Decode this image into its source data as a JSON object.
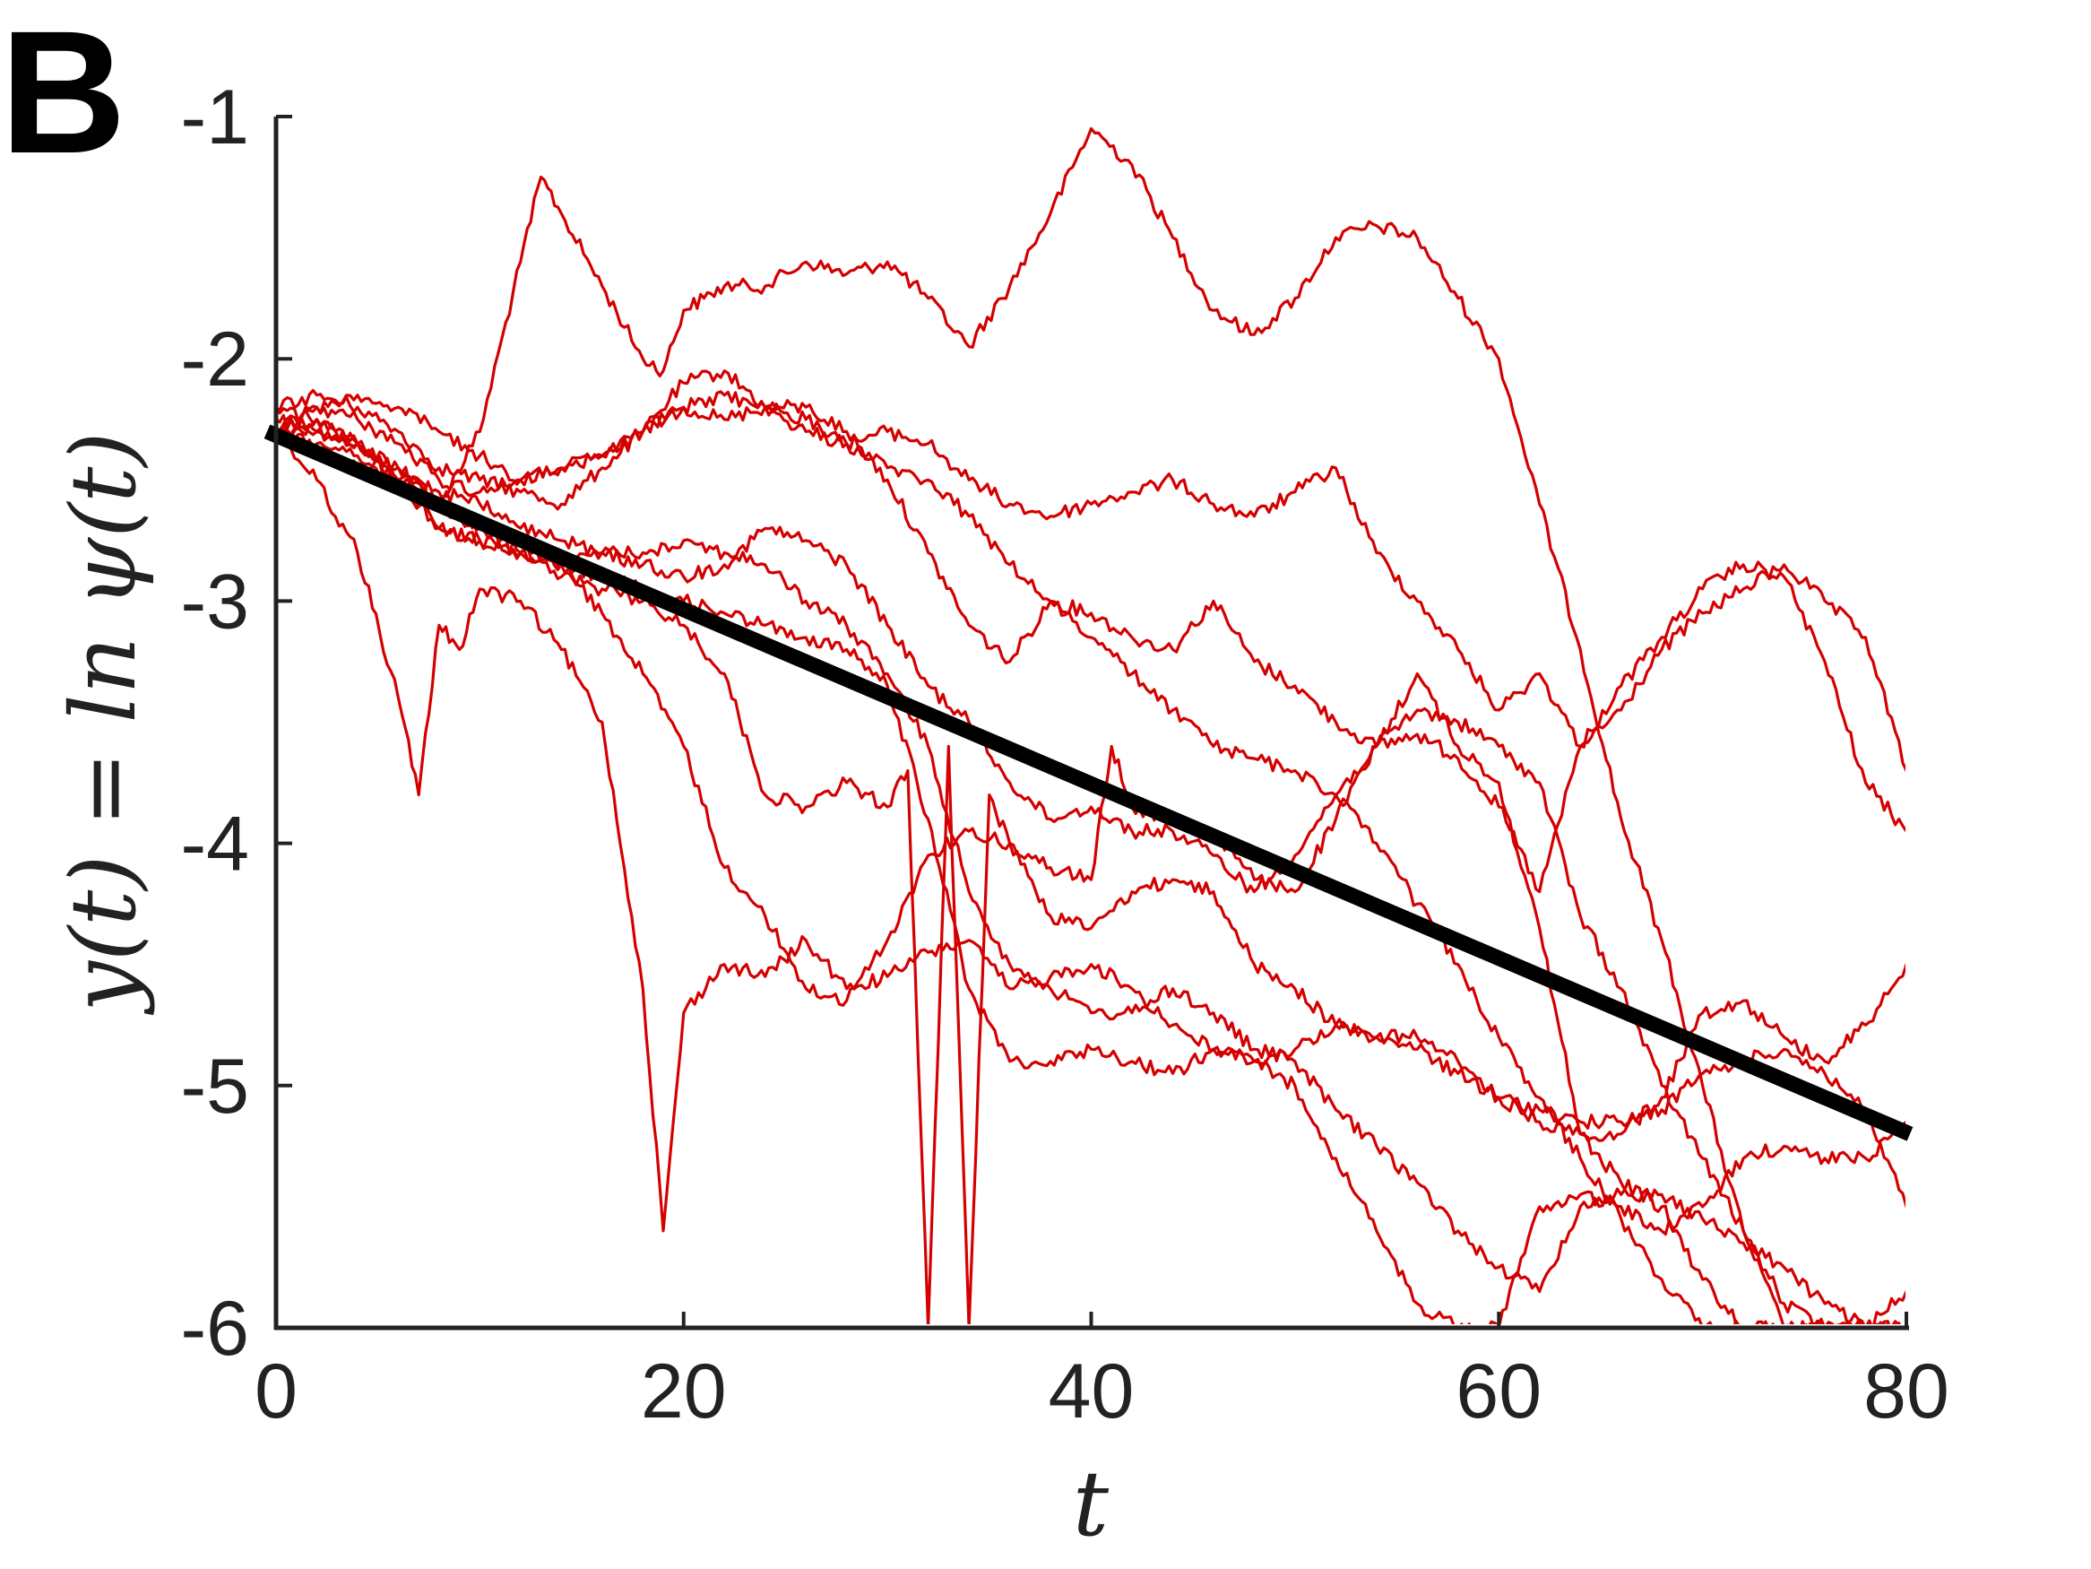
{
  "panel_label": "B",
  "colors": {
    "trajectories": "#d40000",
    "mean_line": "#000000",
    "axes": "#222222"
  },
  "chart_data": {
    "type": "line",
    "title": "",
    "xlabel": "t",
    "ylabel": "y(t) = ln ψ(t)",
    "xlim": [
      0,
      80
    ],
    "ylim": [
      -6,
      -1
    ],
    "xticks": [
      0,
      20,
      40,
      60,
      80
    ],
    "yticks": [
      -1,
      -2,
      -3,
      -4,
      -5,
      -6
    ],
    "xtick_labels": [
      "0",
      "20",
      "40",
      "60",
      "80"
    ],
    "ytick_labels": [
      "-1",
      "-2",
      "-3",
      "-4",
      "-5",
      "-6"
    ],
    "grid": false,
    "legend": "none",
    "reference_line": {
      "x": [
        0,
        80
      ],
      "y": [
        -2.3,
        -5.2
      ]
    },
    "series": [
      {
        "x": [
          0,
          2,
          4,
          6,
          8,
          10,
          12,
          13,
          14,
          16,
          18,
          19,
          20,
          21,
          22,
          24,
          26,
          28,
          30,
          32,
          34,
          36,
          38,
          40,
          42,
          44,
          46,
          48,
          50,
          52,
          54,
          56,
          58,
          60,
          62,
          64,
          66,
          68,
          70,
          72,
          74,
          76,
          78,
          80
        ],
        "y": [
          -2.3,
          -2.25,
          -2.35,
          -2.5,
          -2.6,
          -2.3,
          -1.6,
          -1.25,
          -1.4,
          -1.7,
          -2.0,
          -2.05,
          -1.8,
          -1.75,
          -1.7,
          -1.7,
          -1.6,
          -1.65,
          -1.6,
          -1.75,
          -1.95,
          -1.7,
          -1.4,
          -1.05,
          -1.2,
          -1.5,
          -1.8,
          -1.9,
          -1.75,
          -1.5,
          -1.45,
          -1.5,
          -1.75,
          -2.0,
          -2.6,
          -3.2,
          -3.9,
          -4.4,
          -5.0,
          -5.6,
          -6.0,
          -6.0,
          -6.0,
          -6.0
        ]
      },
      {
        "x": [
          0,
          2,
          4,
          6,
          8,
          10,
          12,
          14,
          16,
          18,
          20,
          22,
          24,
          26,
          28,
          30,
          32,
          34,
          36,
          38,
          40,
          42,
          44,
          46,
          48,
          50,
          52,
          54,
          56,
          58,
          60,
          62,
          64,
          66,
          68,
          70,
          72,
          74,
          76,
          78,
          80
        ],
        "y": [
          -2.2,
          -2.15,
          -2.2,
          -2.3,
          -2.45,
          -2.5,
          -2.55,
          -2.6,
          -2.45,
          -2.3,
          -2.1,
          -2.05,
          -2.2,
          -2.2,
          -2.3,
          -2.5,
          -2.8,
          -3.1,
          -3.25,
          -3.0,
          -3.05,
          -3.15,
          -3.2,
          -3.0,
          -3.25,
          -3.35,
          -3.5,
          -3.6,
          -3.55,
          -3.65,
          -3.85,
          -4.2,
          -3.6,
          -3.45,
          -3.2,
          -3.05,
          -2.95,
          -2.85,
          -3.0,
          -3.15,
          -3.7
        ]
      },
      {
        "x": [
          0,
          2,
          4,
          6,
          8,
          10,
          12,
          14,
          16,
          18,
          20,
          22,
          24,
          26,
          28,
          30,
          32,
          34,
          36,
          38,
          40,
          42,
          44,
          46,
          48,
          50,
          52,
          54,
          56,
          58,
          60,
          62,
          64,
          66,
          68,
          70,
          72,
          74,
          76,
          78,
          80
        ],
        "y": [
          -2.3,
          -2.2,
          -2.25,
          -2.35,
          -2.5,
          -2.55,
          -2.5,
          -2.45,
          -2.4,
          -2.3,
          -2.2,
          -2.25,
          -2.2,
          -2.3,
          -2.35,
          -2.3,
          -2.35,
          -2.5,
          -2.6,
          -2.65,
          -2.6,
          -2.55,
          -2.5,
          -2.6,
          -2.65,
          -2.55,
          -2.45,
          -2.8,
          -3.0,
          -3.2,
          -3.45,
          -3.3,
          -3.6,
          -3.35,
          -3.15,
          -2.95,
          -2.85,
          -2.9,
          -3.25,
          -3.75,
          -3.95
        ]
      },
      {
        "x": [
          0,
          2,
          4,
          6,
          8,
          10,
          12,
          14,
          16,
          18,
          20,
          22,
          24,
          26,
          28,
          30,
          32,
          34,
          36,
          38,
          40,
          42,
          44,
          46,
          48,
          50,
          52,
          54,
          56,
          58,
          60,
          62,
          64,
          66,
          68,
          70,
          72,
          74,
          76,
          78,
          80
        ],
        "y": [
          -2.25,
          -2.3,
          -2.35,
          -2.45,
          -2.6,
          -2.7,
          -2.8,
          -2.85,
          -2.8,
          -2.85,
          -2.9,
          -2.85,
          -2.7,
          -2.75,
          -2.85,
          -3.1,
          -3.35,
          -3.5,
          -3.75,
          -3.9,
          -3.85,
          -3.95,
          -3.95,
          -4.05,
          -4.2,
          -4.05,
          -3.8,
          -3.6,
          -3.45,
          -3.5,
          -3.6,
          -3.75,
          -4.3,
          -4.6,
          -5.0,
          -5.3,
          -5.6,
          -5.9,
          -6.0,
          -6.0,
          -6.0
        ]
      },
      {
        "x": [
          0,
          2,
          4,
          6,
          7,
          8,
          9,
          10,
          12,
          14,
          16,
          18,
          19,
          20,
          22,
          24,
          26,
          28,
          30,
          32,
          34,
          36,
          38,
          40,
          42,
          44,
          46,
          48,
          50,
          52,
          54,
          56,
          58,
          60,
          62,
          64,
          66,
          68,
          70,
          72,
          74,
          76,
          78,
          80
        ],
        "y": [
          -2.3,
          -2.5,
          -2.8,
          -3.4,
          -3.8,
          -3.1,
          -3.2,
          -2.95,
          -3.0,
          -3.2,
          -3.5,
          -4.6,
          -5.6,
          -4.7,
          -4.5,
          -4.55,
          -4.4,
          -4.6,
          -4.55,
          -4.45,
          -4.4,
          -4.6,
          -4.55,
          -4.5,
          -4.6,
          -4.75,
          -4.85,
          -4.9,
          -4.85,
          -4.75,
          -4.8,
          -4.8,
          -4.9,
          -5.05,
          -5.1,
          -5.15,
          -5.15,
          -5.1,
          -4.95,
          -4.9,
          -4.85,
          -4.95,
          -5.1,
          -5.5
        ]
      },
      {
        "x": [
          0,
          2,
          4,
          6,
          8,
          10,
          12,
          14,
          16,
          18,
          20,
          22,
          24,
          26,
          28,
          30,
          31,
          32,
          33,
          34,
          35,
          36,
          38,
          40,
          41,
          42,
          44,
          46,
          48,
          50,
          52,
          54,
          56,
          58,
          60,
          62,
          64,
          66,
          68,
          70,
          72,
          74,
          76,
          78,
          80
        ],
        "y": [
          -2.3,
          -2.4,
          -2.45,
          -2.5,
          -2.7,
          -2.75,
          -2.8,
          -2.9,
          -2.95,
          -3.0,
          -3.1,
          -3.3,
          -3.8,
          -3.85,
          -3.75,
          -3.85,
          -3.7,
          -6.0,
          -3.6,
          -6.0,
          -3.8,
          -4.0,
          -4.1,
          -4.15,
          -3.6,
          -3.85,
          -3.9,
          -3.95,
          -4.15,
          -4.2,
          -3.9,
          -3.6,
          -3.3,
          -3.6,
          -3.75,
          -4.35,
          -5.2,
          -5.4,
          -5.5,
          -5.8,
          -6.0,
          -6.0,
          -6.0,
          -6.0,
          -5.85
        ]
      },
      {
        "x": [
          0,
          2,
          4,
          6,
          8,
          10,
          12,
          14,
          16,
          18,
          20,
          22,
          24,
          26,
          28,
          30,
          32,
          34,
          36,
          38,
          40,
          42,
          44,
          46,
          48,
          50,
          52,
          54,
          56,
          58,
          60,
          62,
          64,
          66,
          68,
          70,
          72,
          74,
          76,
          78,
          80
        ],
        "y": [
          -2.2,
          -2.25,
          -2.35,
          -2.45,
          -2.6,
          -2.7,
          -2.75,
          -2.85,
          -3.05,
          -3.3,
          -3.6,
          -4.1,
          -4.3,
          -4.6,
          -4.65,
          -4.4,
          -4.05,
          -3.95,
          -4.0,
          -4.3,
          -4.35,
          -4.2,
          -4.15,
          -4.2,
          -4.5,
          -4.6,
          -4.75,
          -4.8,
          -4.85,
          -4.95,
          -5.05,
          -5.15,
          -5.2,
          -5.2,
          -5.05,
          -4.7,
          -4.65,
          -4.8,
          -4.9,
          -4.75,
          -4.5
        ]
      },
      {
        "x": [
          0,
          2,
          4,
          6,
          8,
          10,
          12,
          14,
          16,
          18,
          20,
          22,
          24,
          26,
          28,
          30,
          32,
          34,
          36,
          38,
          40,
          42,
          44,
          46,
          48,
          50,
          52,
          54,
          56,
          58,
          60,
          62,
          64,
          66,
          68,
          70,
          72,
          74,
          76,
          78,
          80
        ],
        "y": [
          -2.3,
          -2.35,
          -2.4,
          -2.5,
          -2.55,
          -2.6,
          -2.7,
          -2.75,
          -2.8,
          -2.8,
          -2.75,
          -2.8,
          -2.85,
          -3.0,
          -3.1,
          -3.3,
          -3.6,
          -4.2,
          -4.5,
          -4.6,
          -4.7,
          -4.7,
          -4.6,
          -4.7,
          -4.85,
          -4.9,
          -5.1,
          -5.25,
          -5.4,
          -5.6,
          -5.75,
          -5.85,
          -5.5,
          -5.45,
          -5.45,
          -5.55,
          -5.65,
          -5.75,
          -5.9,
          -6.0,
          -6.0
        ]
      },
      {
        "x": [
          0,
          2,
          4,
          6,
          8,
          10,
          12,
          14,
          16,
          18,
          20,
          22,
          24,
          26,
          28,
          30,
          32,
          34,
          36,
          38,
          40,
          42,
          44,
          46,
          48,
          50,
          52,
          54,
          56,
          58,
          60,
          62,
          64,
          66,
          68,
          70,
          72,
          74,
          76,
          78,
          80
        ],
        "y": [
          -2.3,
          -2.3,
          -2.35,
          -2.5,
          -2.7,
          -2.75,
          -2.8,
          -2.85,
          -2.9,
          -2.95,
          -3.0,
          -3.05,
          -3.1,
          -3.15,
          -3.2,
          -3.35,
          -3.9,
          -4.6,
          -4.9,
          -4.9,
          -4.85,
          -4.9,
          -4.95,
          -4.85,
          -4.9,
          -5.0,
          -5.3,
          -5.6,
          -5.9,
          -6.0,
          -6.0,
          -5.5,
          -5.45,
          -5.5,
          -5.6,
          -5.5,
          -5.3,
          -5.25,
          -5.3,
          -5.3,
          -5.15
        ]
      },
      {
        "x": [
          0,
          2,
          4,
          6,
          8,
          10,
          12,
          14,
          16,
          18,
          20,
          22,
          24,
          26,
          28,
          30,
          32,
          34,
          36,
          38,
          40,
          42,
          44,
          46,
          48,
          50,
          52,
          54,
          56,
          58,
          60,
          62,
          64,
          66,
          68,
          70,
          72,
          74,
          76,
          78,
          80
        ],
        "y": [
          -2.3,
          -2.2,
          -2.15,
          -2.2,
          -2.3,
          -2.4,
          -2.5,
          -2.45,
          -2.4,
          -2.3,
          -2.2,
          -2.15,
          -2.2,
          -2.25,
          -2.35,
          -2.45,
          -2.5,
          -2.65,
          -2.85,
          -3.0,
          -3.15,
          -3.3,
          -3.45,
          -3.6,
          -3.65,
          -3.7,
          -3.8,
          -4.0,
          -4.25,
          -4.5,
          -4.8,
          -5.05,
          -5.3,
          -5.55,
          -5.8,
          -6.0,
          -6.0,
          -6.0,
          -6.0,
          -6.0,
          -6.0
        ]
      }
    ]
  }
}
